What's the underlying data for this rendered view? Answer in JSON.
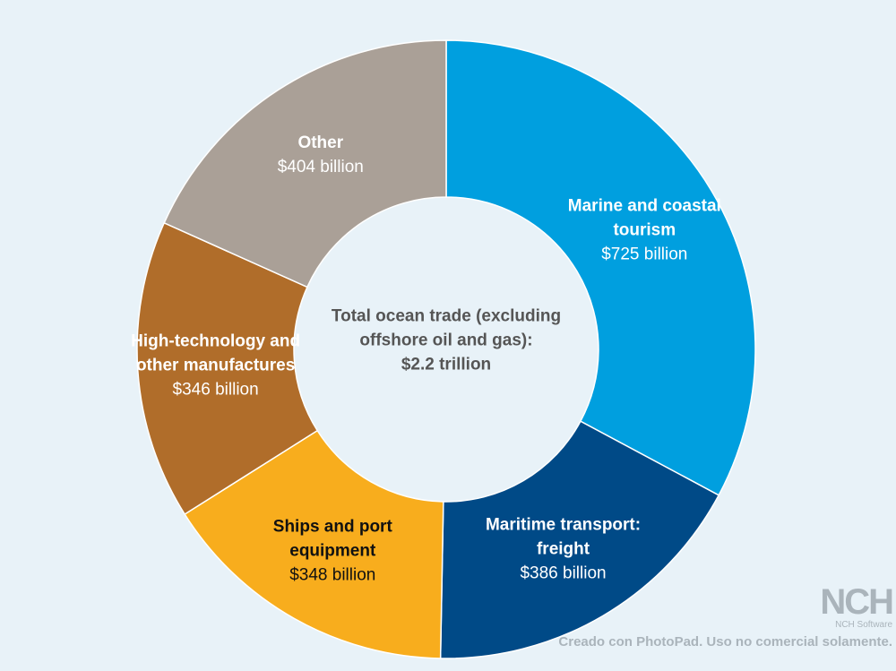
{
  "chart_data": {
    "type": "donut",
    "categories": [
      "Marine and coastal tourism",
      "Maritime transport: freight",
      "Ships and port equipment",
      "High-technology and other manufactures",
      "Other"
    ],
    "values": [
      725,
      386,
      348,
      346,
      404
    ],
    "value_labels": [
      "$725 billion",
      "$386 billion",
      "$348 billion",
      "$346 billion",
      "$404 billion"
    ],
    "colors": [
      "#009fdf",
      "#004a87",
      "#f8ad1d",
      "#b06d2a",
      "#aaa097"
    ],
    "label_colors": [
      "#ffffff",
      "#ffffff",
      "#111111",
      "#ffffff",
      "#ffffff"
    ],
    "center_text": "Total ocean trade (excluding offshore oil and gas):",
    "center_value": "$2.2 trillion"
  },
  "watermark": {
    "logo": "NCH",
    "company": "NCH Software",
    "notice": "Creado con PhotoPad. Uso no comercial solamente."
  }
}
